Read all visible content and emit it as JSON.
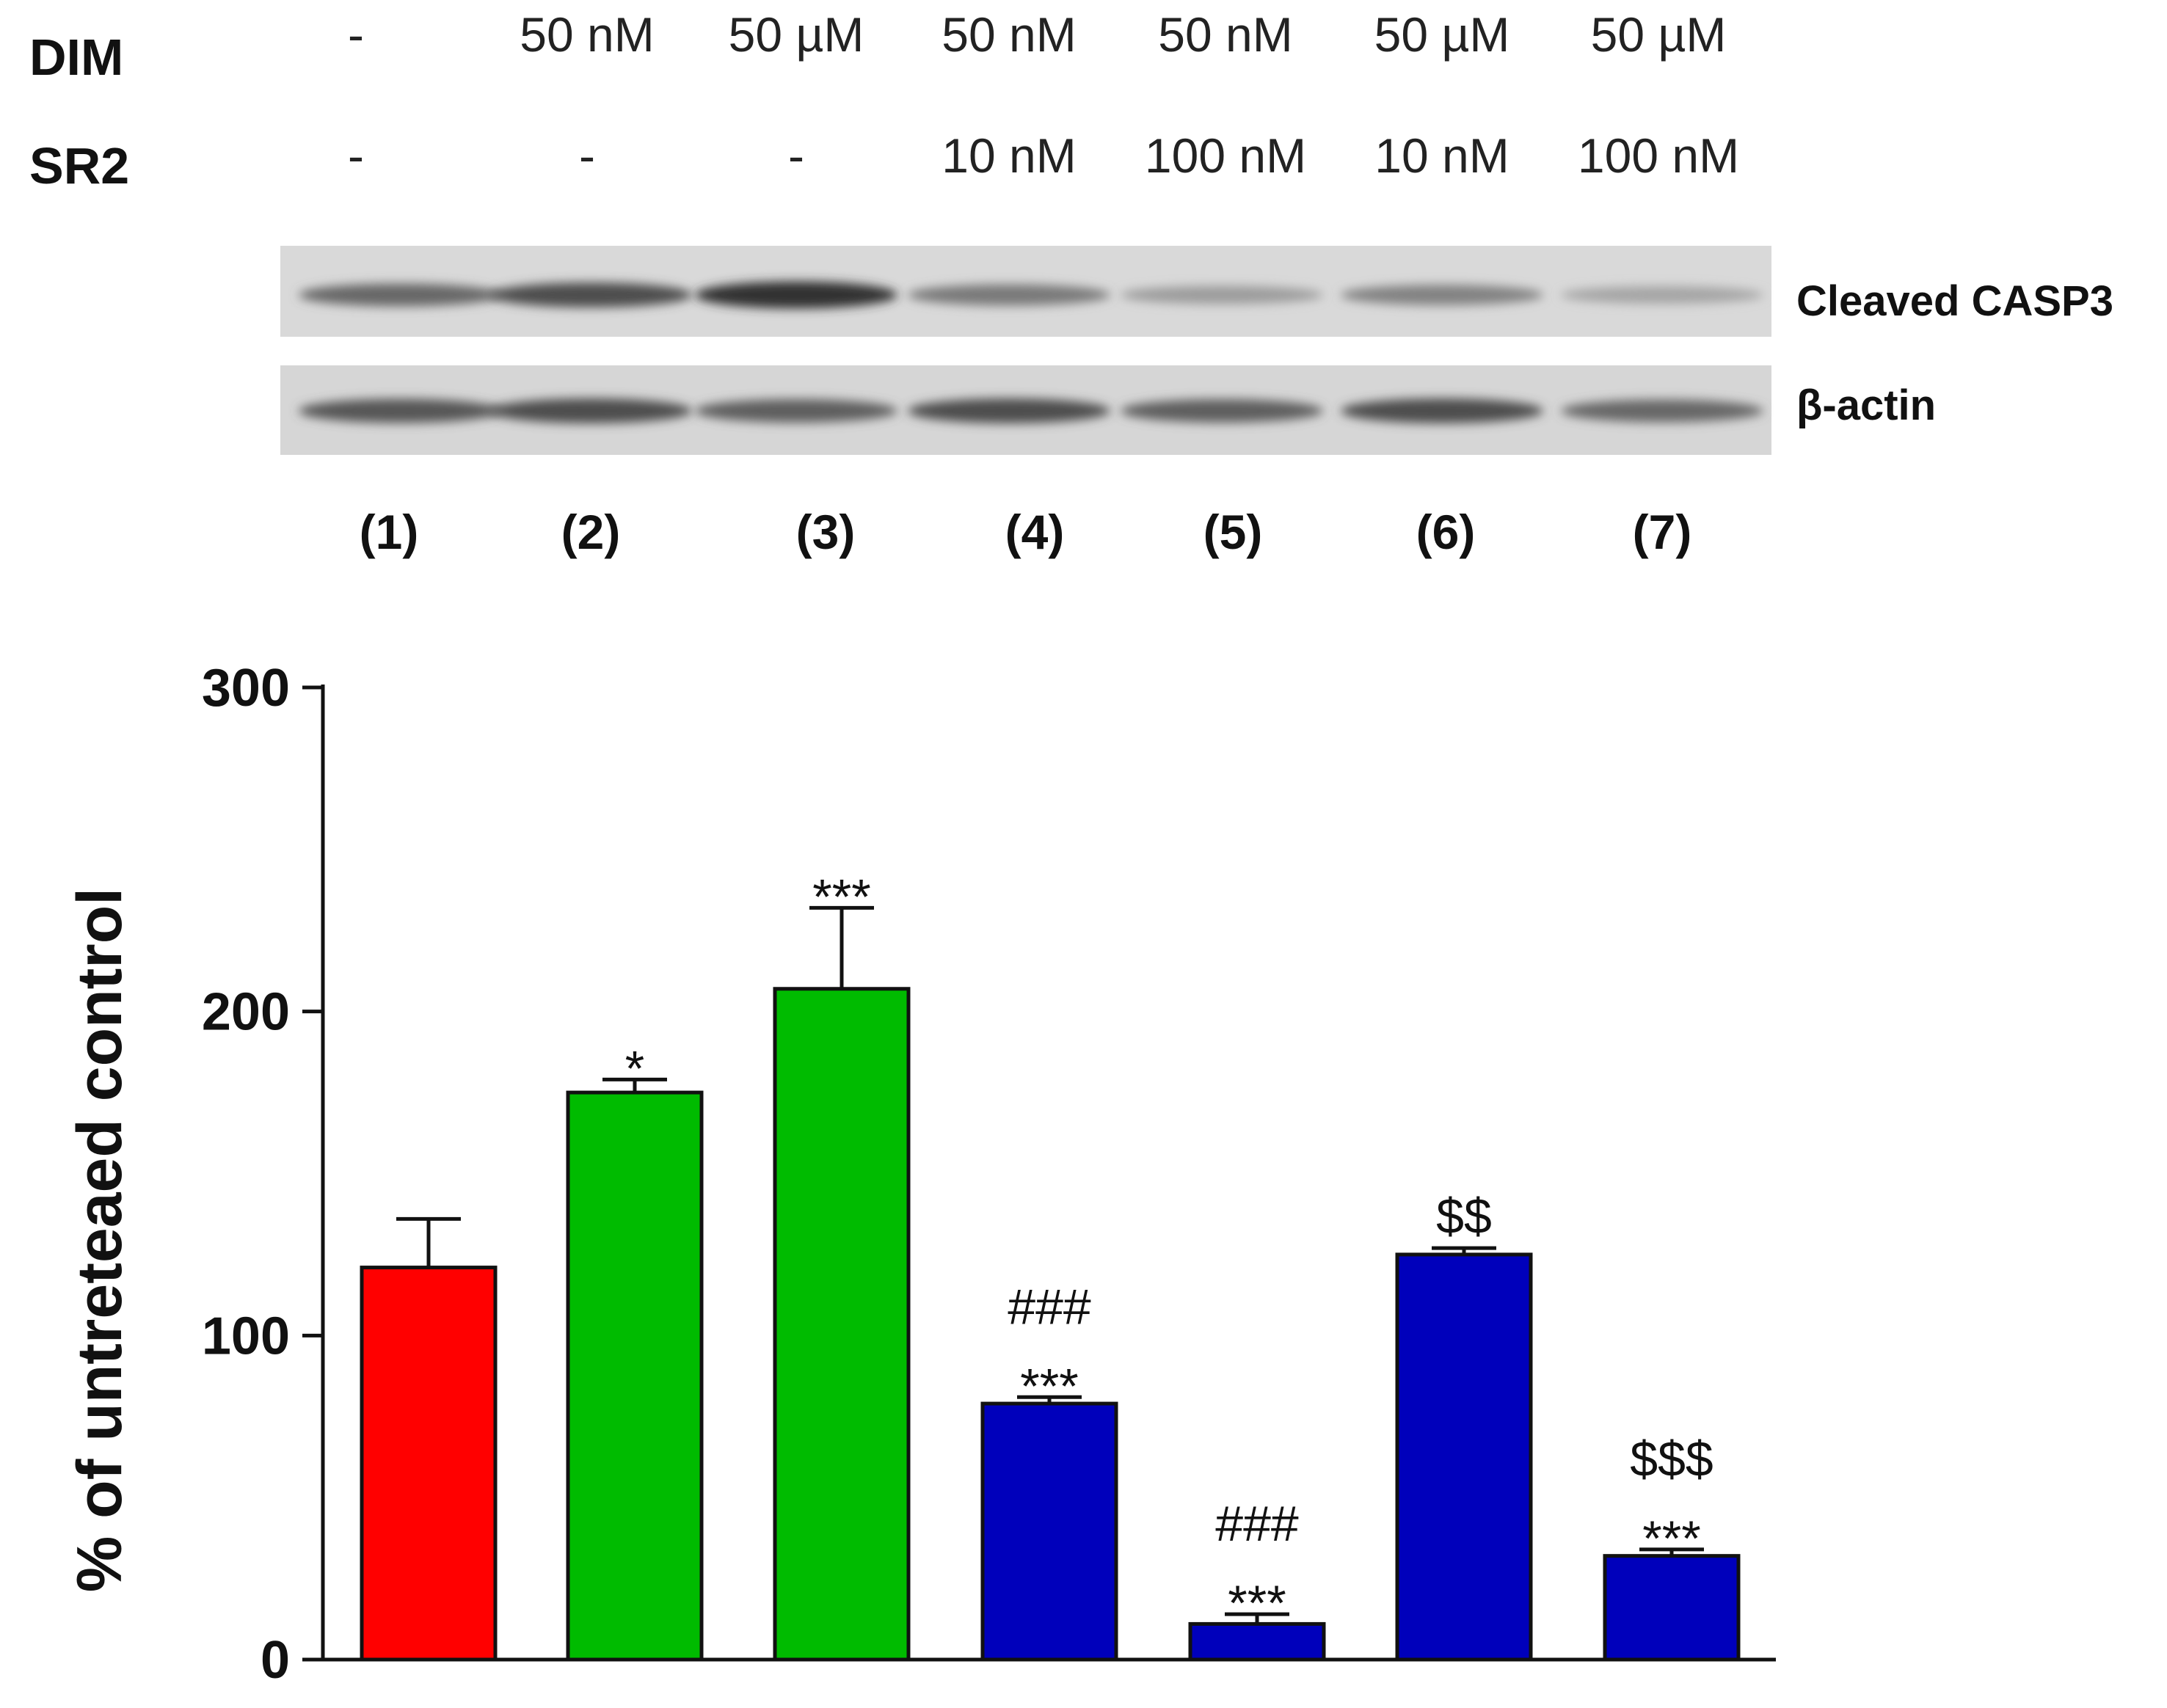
{
  "blot": {
    "rows": [
      {
        "label": "DIM",
        "values": [
          "-",
          "50 nM",
          "50 µM",
          "50 nM",
          "50 nM",
          "50 µM",
          "50 µM"
        ]
      },
      {
        "label": "SR2",
        "values": [
          "-",
          "-",
          "-",
          "10 nM",
          "100 nM",
          "10 nM",
          "100 nM"
        ]
      }
    ],
    "bands": [
      {
        "label": "Cleaved CASP3",
        "intensities": [
          0.55,
          0.7,
          0.85,
          0.45,
          0.25,
          0.4,
          0.2
        ]
      },
      {
        "label": "β-actin",
        "intensities": [
          0.65,
          0.7,
          0.6,
          0.7,
          0.6,
          0.7,
          0.55
        ]
      }
    ],
    "lanes": [
      "(1)",
      "(2)",
      "(3)",
      "(4)",
      "(5)",
      "(6)",
      "(7)"
    ]
  },
  "chart_data": {
    "type": "bar",
    "title": "",
    "xlabel": "",
    "ylabel": "% of untreteaed control",
    "ylim": [
      0,
      300
    ],
    "yticks": [
      "0",
      "100",
      "200",
      "300"
    ],
    "categories": [
      "(1)",
      "(2)",
      "(3)",
      "(4)",
      "(5)",
      "(6)",
      "(7)"
    ],
    "values": [
      121,
      175,
      207,
      79,
      11,
      125,
      32
    ],
    "errors": [
      15,
      4,
      25,
      2,
      3,
      2,
      2
    ],
    "colors": [
      "#ff0000",
      "#00bb00",
      "#00bb00",
      "#0000bb",
      "#0000bb",
      "#0000bb",
      "#0000bb"
    ],
    "annotations": [
      [],
      [
        "*"
      ],
      [
        "***"
      ],
      [
        "###",
        "***"
      ],
      [
        "###",
        "***"
      ],
      [
        "$$"
      ],
      [
        "$$$",
        "***"
      ]
    ]
  }
}
